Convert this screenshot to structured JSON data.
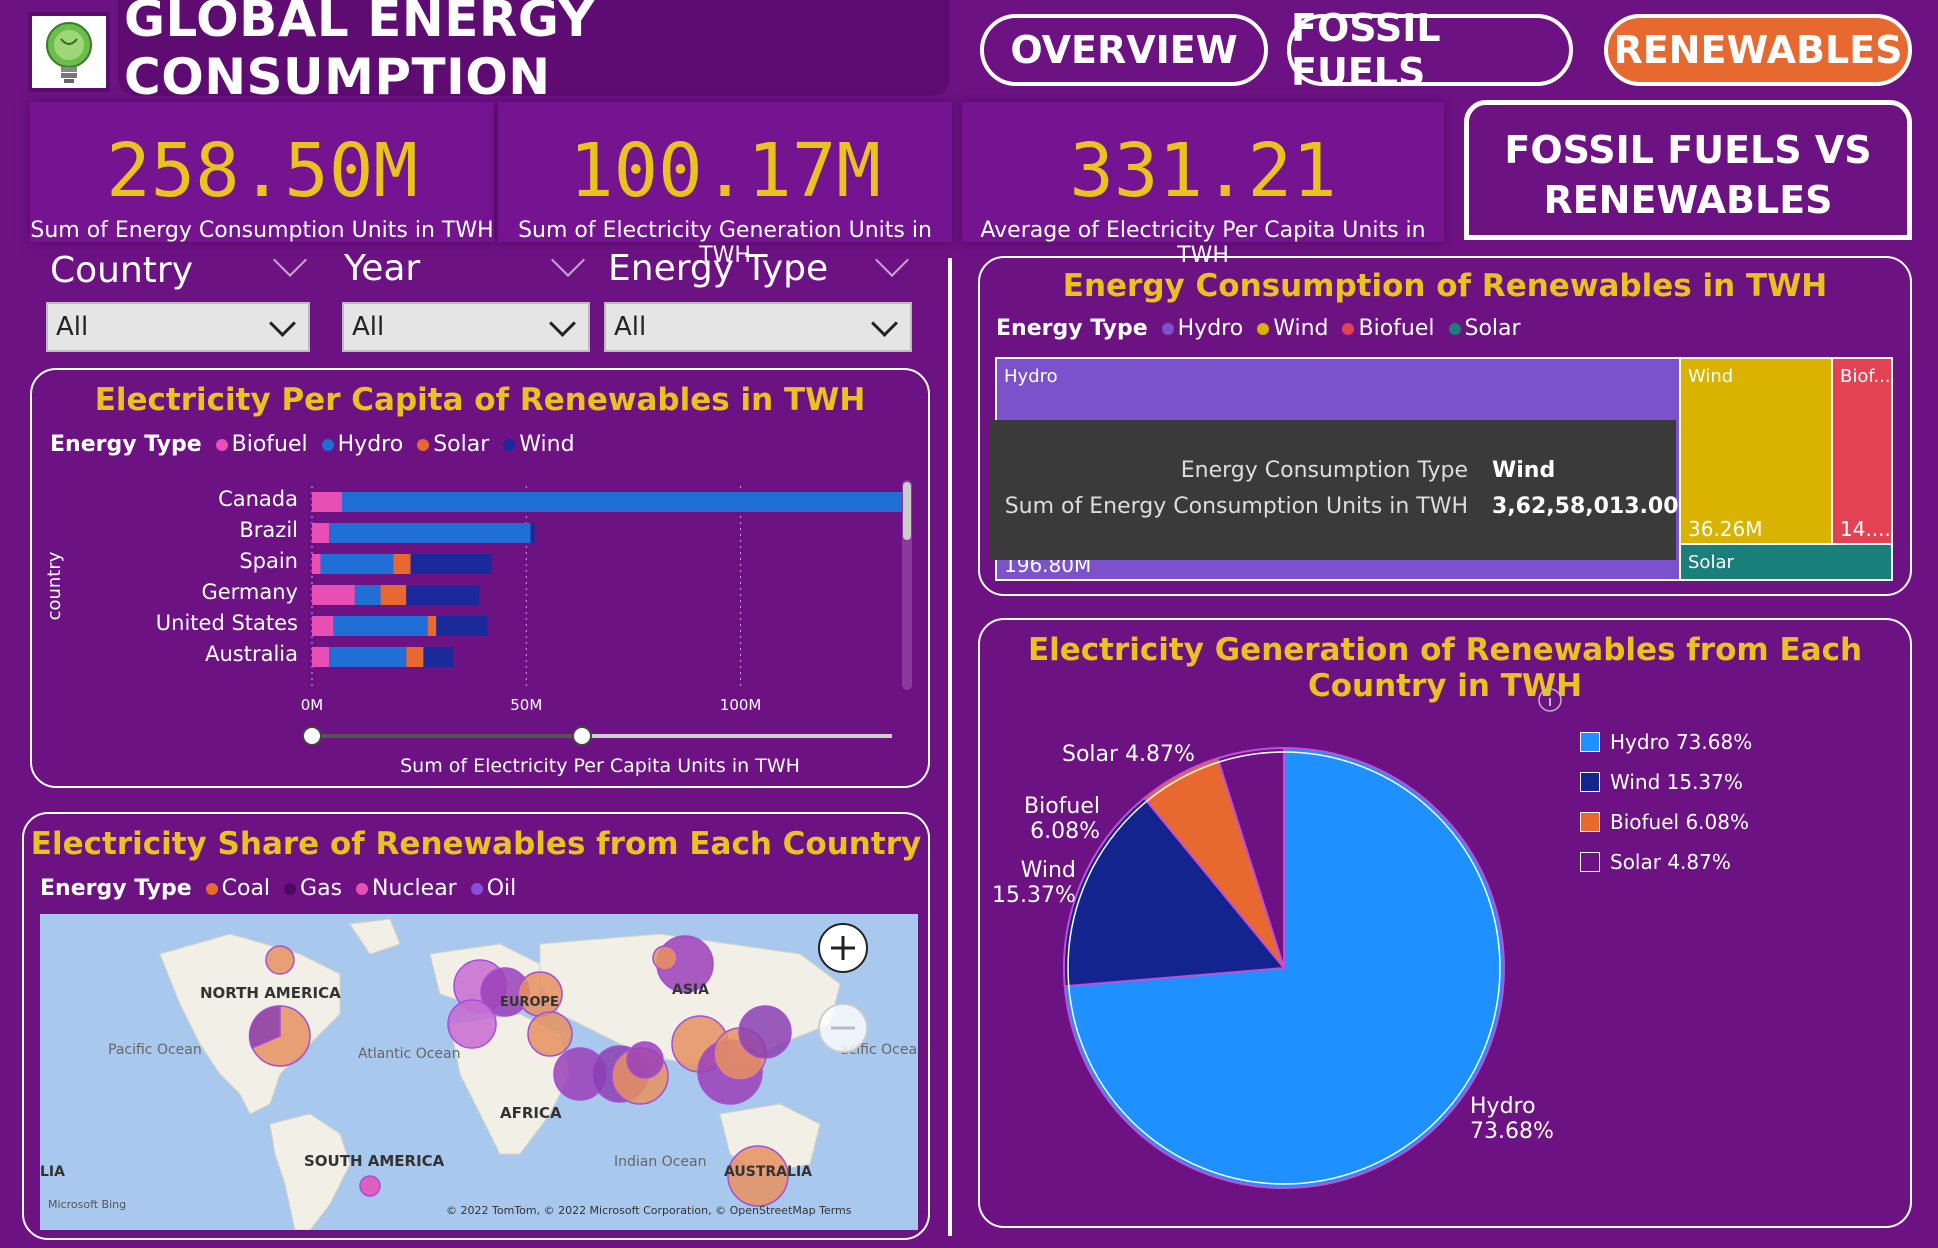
{
  "header": {
    "title": "GLOBAL ENERGY CONSUMPTION",
    "nav": [
      "OVERVIEW",
      "FOSSIL FUELS",
      "RENEWABLES"
    ],
    "compare_button": "FOSSIL FUELS VS RENEWABLES",
    "accent": "#e8692f"
  },
  "kpis": [
    {
      "value": "258.50M",
      "label": "Sum of Energy Consumption Units in TWH"
    },
    {
      "value": "100.17M",
      "label": "Sum of Electricity Generation Units in TWH"
    },
    {
      "value": "331.21",
      "label": "Average of Electricity Per Capita Units in TWH"
    }
  ],
  "slicers": [
    {
      "title": "Country",
      "value": "All"
    },
    {
      "title": "Year",
      "value": "All"
    },
    {
      "title": "Energy Type",
      "value": "All"
    }
  ],
  "per_capita": {
    "title": "Electricity Per Capita of Renewables in TWH",
    "legend_title": "Energy Type",
    "legend": [
      {
        "name": "Biofuel",
        "color": "#e84fb5"
      },
      {
        "name": "Hydro",
        "color": "#1f6fd6"
      },
      {
        "name": "Solar",
        "color": "#e8692f"
      },
      {
        "name": "Wind",
        "color": "#1a2a9a"
      }
    ],
    "ylabel": "country",
    "xlabel": "Sum of Electricity Per Capita Units in TWH",
    "ticks": [
      "0M",
      "50M",
      "100M"
    ]
  },
  "map": {
    "title": "Electricity Share of Renewables from Each Country",
    "legend_title": "Energy Type",
    "legend": [
      {
        "name": "Coal",
        "color": "#e8692f"
      },
      {
        "name": "Gas",
        "color": "#4a0a5e"
      },
      {
        "name": "Nuclear",
        "color": "#e84fb5"
      },
      {
        "name": "Oil",
        "color": "#8a4fd6"
      }
    ],
    "labels": {
      "north_america": "NORTH AMERICA",
      "south_america": "SOUTH AMERICA",
      "africa": "AFRICA",
      "asia": "ASIA",
      "europe": "EUROPE",
      "australia": "AUSTRALIA",
      "lia": "LIA",
      "pacific_w": "Pacific Ocean",
      "atlantic": "Atlantic Ocean",
      "indian": "Indian Ocean",
      "pacific_e": "acific Ocean"
    },
    "bing": "Microsoft Bing",
    "copyright": "© 2022 TomTom, © 2022 Microsoft Corporation, © OpenStreetMap  Terms"
  },
  "treemap": {
    "title": "Energy Consumption of Renewables in TWH",
    "legend_title": "Energy Type",
    "legend": [
      {
        "name": "Hydro",
        "color": "#7b52cc"
      },
      {
        "name": "Wind",
        "color": "#d9b300"
      },
      {
        "name": "Biofuel",
        "color": "#e34252"
      },
      {
        "name": "Solar",
        "color": "#1a7f7a"
      }
    ],
    "cells": {
      "hydro_label": "Hydro",
      "hydro_value": "196.80M",
      "wind_label": "Wind",
      "wind_value": "36.26M",
      "biofuel_label": "Biof...",
      "biofuel_value": "14....",
      "solar_label": "Solar"
    },
    "tooltip": {
      "row1_label": "Energy Consumption Type",
      "row1_value": "Wind",
      "row2_label": "Sum of Energy Consumption Units in TWH",
      "row2_value": "3,62,58,013.00"
    }
  },
  "pie": {
    "title": "Electricity Generation of Renewables from Each Country in TWH",
    "info_icon": "info-icon",
    "legend": [
      {
        "name": "Hydro 73.68%",
        "color": "#1e90ff"
      },
      {
        "name": "Wind 15.37%",
        "color": "#13248f"
      },
      {
        "name": "Biofuel 6.08%",
        "color": "#e8692f"
      },
      {
        "name": "Solar 4.87%",
        "color": "#6d1283"
      }
    ],
    "callouts": {
      "solar": "Solar 4.87%",
      "biofuel_1": "Biofuel",
      "biofuel_2": "6.08%",
      "wind_1": "Wind",
      "wind_2": "15.37%",
      "hydro_1": "Hydro",
      "hydro_2": "73.68%"
    }
  },
  "chart_data": [
    {
      "type": "bar",
      "title": "Electricity Per Capita of Renewables in TWH",
      "xlabel": "Sum of Electricity Per Capita Units in TWH",
      "ylabel": "country",
      "categories": [
        "Canada",
        "Brazil",
        "Spain",
        "Germany",
        "United States",
        "Australia"
      ],
      "series": [
        {
          "name": "Biofuel",
          "values": [
            7,
            4,
            2,
            10,
            5,
            4
          ]
        },
        {
          "name": "Hydro",
          "values": [
            132,
            47,
            17,
            6,
            22,
            18
          ]
        },
        {
          "name": "Solar",
          "values": [
            0,
            0,
            4,
            6,
            2,
            4
          ]
        },
        {
          "name": "Wind",
          "values": [
            0,
            1,
            19,
            17,
            12,
            7
          ]
        }
      ],
      "xlim": [
        0,
        140
      ]
    },
    {
      "type": "treemap",
      "title": "Energy Consumption of Renewables in TWH",
      "categories": [
        "Hydro",
        "Wind",
        "Biofuel",
        "Solar"
      ],
      "values": [
        196.8,
        36.26,
        14.0,
        11.44
      ]
    },
    {
      "type": "pie",
      "title": "Electricity Generation of Renewables from Each Country in TWH",
      "categories": [
        "Hydro",
        "Wind",
        "Biofuel",
        "Solar"
      ],
      "values": [
        73.68,
        15.37,
        6.08,
        4.87
      ]
    }
  ]
}
